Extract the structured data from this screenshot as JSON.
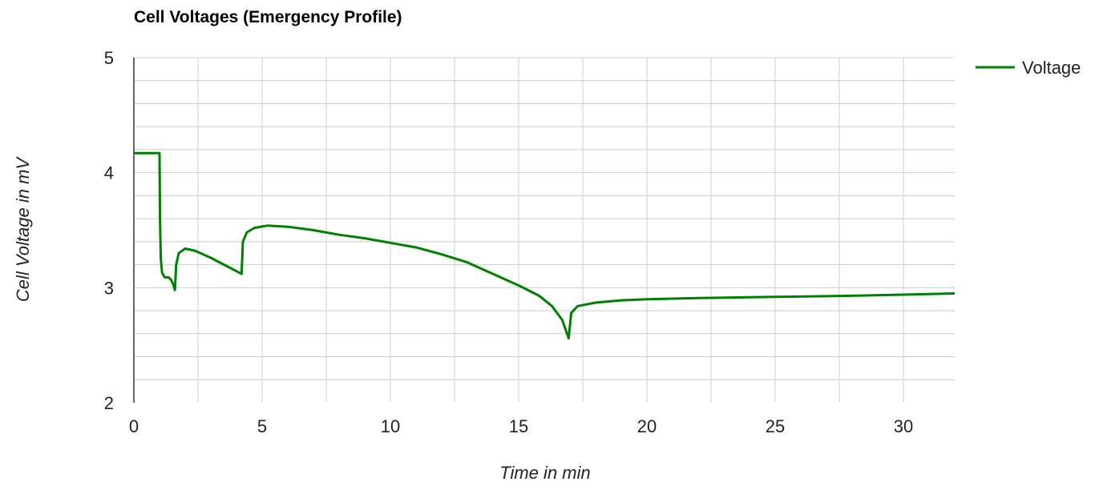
{
  "chart_data": {
    "type": "line",
    "title": "Cell Voltages (Emergency Profile)",
    "xlabel": "Time in min",
    "ylabel": "Cell Voltage in mV",
    "xlim": [
      0,
      32
    ],
    "ylim": [
      2,
      5
    ],
    "x_ticks": [
      0,
      5,
      10,
      15,
      20,
      25,
      30
    ],
    "y_ticks": [
      2,
      3,
      4,
      5
    ],
    "grid": true,
    "legend_position": "top-right",
    "series": [
      {
        "name": "Voltage",
        "color": "#008000",
        "points": [
          [
            0,
            4.17
          ],
          [
            1.0,
            4.17
          ],
          [
            1.02,
            3.6
          ],
          [
            1.05,
            3.25
          ],
          [
            1.1,
            3.13
          ],
          [
            1.2,
            3.09
          ],
          [
            1.35,
            3.09
          ],
          [
            1.45,
            3.07
          ],
          [
            1.55,
            3.02
          ],
          [
            1.6,
            2.98
          ],
          [
            1.65,
            3.2
          ],
          [
            1.75,
            3.3
          ],
          [
            2.0,
            3.34
          ],
          [
            2.4,
            3.32
          ],
          [
            3.0,
            3.26
          ],
          [
            3.6,
            3.19
          ],
          [
            4.2,
            3.12
          ],
          [
            4.25,
            3.4
          ],
          [
            4.4,
            3.48
          ],
          [
            4.7,
            3.52
          ],
          [
            5.2,
            3.54
          ],
          [
            6.0,
            3.53
          ],
          [
            7.0,
            3.5
          ],
          [
            8.0,
            3.46
          ],
          [
            9.0,
            3.43
          ],
          [
            10.0,
            3.39
          ],
          [
            11.0,
            3.35
          ],
          [
            12.0,
            3.29
          ],
          [
            13.0,
            3.22
          ],
          [
            14.0,
            3.12
          ],
          [
            15.0,
            3.02
          ],
          [
            15.8,
            2.93
          ],
          [
            16.3,
            2.84
          ],
          [
            16.7,
            2.72
          ],
          [
            16.95,
            2.56
          ],
          [
            17.05,
            2.78
          ],
          [
            17.3,
            2.84
          ],
          [
            18.0,
            2.87
          ],
          [
            19.0,
            2.89
          ],
          [
            20.0,
            2.9
          ],
          [
            22.0,
            2.91
          ],
          [
            25.0,
            2.92
          ],
          [
            28.0,
            2.93
          ],
          [
            30.0,
            2.94
          ],
          [
            32.0,
            2.95
          ]
        ]
      }
    ]
  }
}
